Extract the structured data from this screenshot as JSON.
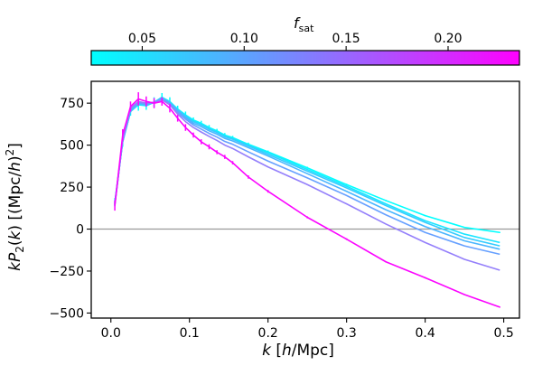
{
  "chart_data": {
    "type": "line",
    "title": "",
    "xlabel": "k [h/Mpc]",
    "ylabel": "kP2(k) [(Mpc/h)2]",
    "xlim": [
      -0.025,
      0.52
    ],
    "ylim": [
      -530,
      880
    ],
    "grid": false,
    "legend": "none",
    "x_ticks": [
      0.0,
      0.1,
      0.2,
      0.3,
      0.4,
      0.5
    ],
    "x_tick_labels": [
      "0.0",
      "0.1",
      "0.2",
      "0.3",
      "0.4",
      "0.5"
    ],
    "y_ticks": [
      -500,
      -250,
      0,
      250,
      500,
      750
    ],
    "y_tick_labels": [
      "−500",
      "−250",
      "0",
      "250",
      "500",
      "750"
    ],
    "reference_line": {
      "y": 0,
      "color": "#999999"
    },
    "colorbar": {
      "label": "f",
      "label_subscript": "sat",
      "range": [
        0.025,
        0.235
      ],
      "ticks": [
        0.05,
        0.1,
        0.15,
        0.2
      ],
      "tick_labels": [
        "0.05",
        "0.10",
        "0.15",
        "0.20"
      ],
      "colormap": [
        "#00ffff",
        "#ff00ff"
      ]
    },
    "series": [
      {
        "fsat": 0.03,
        "color": "#00ffff",
        "x": [
          0.005,
          0.015,
          0.025,
          0.035,
          0.045,
          0.055,
          0.065,
          0.075,
          0.085,
          0.095,
          0.105,
          0.115,
          0.125,
          0.135,
          0.145,
          0.155,
          0.175,
          0.2,
          0.25,
          0.3,
          0.35,
          0.4,
          0.45,
          0.495
        ],
        "y": [
          160,
          520,
          700,
          740,
          735,
          755,
          785,
          760,
          715,
          680,
          650,
          630,
          605,
          585,
          560,
          545,
          505,
          460,
          365,
          265,
          170,
          80,
          10,
          -20
        ],
        "errors": [
          25,
          30,
          25,
          35,
          25,
          30,
          25,
          25,
          20,
          20,
          15,
          15,
          15,
          12,
          12,
          10,
          10,
          8,
          6,
          5,
          4,
          4,
          3,
          3
        ]
      },
      {
        "fsat": 0.04,
        "color": "#1ae5ff",
        "x": [
          0.005,
          0.015,
          0.025,
          0.035,
          0.045,
          0.055,
          0.065,
          0.075,
          0.085,
          0.095,
          0.105,
          0.115,
          0.125,
          0.135,
          0.145,
          0.155,
          0.175,
          0.2,
          0.25,
          0.3,
          0.35,
          0.4,
          0.45,
          0.495
        ],
        "y": [
          150,
          520,
          700,
          745,
          735,
          755,
          785,
          758,
          712,
          676,
          645,
          625,
          600,
          580,
          555,
          540,
          500,
          455,
          355,
          255,
          150,
          50,
          -30,
          -80
        ]
      },
      {
        "fsat": 0.05,
        "color": "#33ccff",
        "x": [
          0.005,
          0.015,
          0.025,
          0.035,
          0.045,
          0.055,
          0.065,
          0.075,
          0.085,
          0.095,
          0.105,
          0.115,
          0.125,
          0.135,
          0.145,
          0.155,
          0.175,
          0.2,
          0.25,
          0.3,
          0.35,
          0.4,
          0.45,
          0.495
        ],
        "y": [
          155,
          520,
          700,
          745,
          740,
          755,
          780,
          755,
          710,
          672,
          640,
          620,
          595,
          575,
          550,
          535,
          495,
          445,
          345,
          245,
          140,
          40,
          -50,
          -100
        ]
      },
      {
        "fsat": 0.07,
        "color": "#4ab5ff",
        "x": [
          0.005,
          0.015,
          0.025,
          0.035,
          0.045,
          0.055,
          0.065,
          0.075,
          0.085,
          0.095,
          0.105,
          0.115,
          0.125,
          0.135,
          0.145,
          0.155,
          0.175,
          0.2,
          0.25,
          0.3,
          0.35,
          0.4,
          0.45,
          0.495
        ],
        "y": [
          150,
          525,
          705,
          750,
          740,
          755,
          780,
          750,
          705,
          665,
          630,
          610,
          585,
          565,
          540,
          525,
          485,
          435,
          330,
          225,
          115,
          15,
          -70,
          -120
        ]
      },
      {
        "fsat": 0.09,
        "color": "#66a0ff",
        "x": [
          0.005,
          0.015,
          0.025,
          0.035,
          0.045,
          0.055,
          0.065,
          0.075,
          0.085,
          0.095,
          0.105,
          0.115,
          0.125,
          0.135,
          0.145,
          0.155,
          0.175,
          0.2,
          0.25,
          0.3,
          0.35,
          0.4,
          0.45,
          0.495
        ],
        "y": [
          145,
          525,
          710,
          755,
          745,
          755,
          775,
          745,
          695,
          655,
          620,
          595,
          570,
          548,
          522,
          505,
          460,
          405,
          305,
          200,
          85,
          -20,
          -100,
          -150
        ]
      },
      {
        "fsat": 0.13,
        "color": "#947ffb",
        "x": [
          0.005,
          0.015,
          0.025,
          0.035,
          0.045,
          0.055,
          0.065,
          0.075,
          0.085,
          0.095,
          0.105,
          0.115,
          0.125,
          0.135,
          0.145,
          0.155,
          0.175,
          0.2,
          0.25,
          0.3,
          0.35,
          0.4,
          0.45,
          0.495
        ],
        "y": [
          140,
          530,
          720,
          760,
          750,
          755,
          770,
          740,
          685,
          640,
          605,
          578,
          552,
          528,
          500,
          480,
          430,
          370,
          265,
          150,
          30,
          -80,
          -180,
          -245
        ]
      },
      {
        "fsat": 0.23,
        "color": "#fb04ff",
        "x": [
          0.005,
          0.015,
          0.025,
          0.035,
          0.045,
          0.055,
          0.065,
          0.075,
          0.085,
          0.095,
          0.105,
          0.115,
          0.125,
          0.135,
          0.145,
          0.155,
          0.175,
          0.2,
          0.25,
          0.3,
          0.35,
          0.4,
          0.45,
          0.495
        ],
        "y": [
          140,
          560,
          730,
          775,
          760,
          750,
          760,
          720,
          660,
          605,
          560,
          520,
          490,
          458,
          430,
          395,
          310,
          225,
          70,
          -60,
          -195,
          -290,
          -390,
          -465
        ],
        "errors": [
          30,
          35,
          30,
          40,
          30,
          30,
          25,
          25,
          20,
          20,
          15,
          15,
          15,
          12,
          12,
          10,
          10,
          8,
          6,
          5,
          4,
          4,
          3,
          3
        ]
      }
    ]
  }
}
